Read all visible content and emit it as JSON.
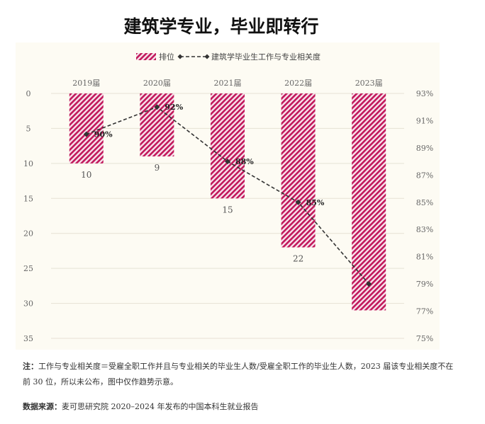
{
  "title": "建筑学专业，毕业即转行",
  "note": {
    "prefix": "注：",
    "text": "工作与专业相关度＝受雇全职工作并且与专业相关的毕业生人数/受雇全职工作的毕业生人数，2023 届该专业相关度不在前 30 位，所以未公布，图中仅作趋势示意。"
  },
  "source": {
    "prefix": "数据来源：",
    "text": "麦可思研究院 2020–2024 年发布的中国本科生就业报告"
  },
  "chart_data": {
    "type": "bar",
    "categories": [
      "2019届",
      "2020届",
      "2021届",
      "2022届",
      "2023届"
    ],
    "series": [
      {
        "name": "排位",
        "type": "bar",
        "axis": "left",
        "values": [
          10,
          9,
          15,
          22,
          31
        ],
        "data_labels": [
          "10",
          "9",
          "15",
          "22",
          ""
        ],
        "color": "#c2185b",
        "pattern": "diagonal-hatch"
      },
      {
        "name": "建筑学毕业生工作与专业相关度",
        "type": "line",
        "axis": "right",
        "values": [
          90,
          92,
          88,
          85,
          79
        ],
        "data_labels": [
          "90%",
          "92%",
          "88%",
          "85%",
          ""
        ],
        "color": "#333333",
        "line_style": "dashed",
        "marker": "diamond"
      }
    ],
    "left_axis": {
      "inverted": true,
      "ylim": [
        0,
        35
      ],
      "ticks": [
        "0",
        "5",
        "10",
        "15",
        "20",
        "25",
        "30",
        "35"
      ]
    },
    "right_axis": {
      "ylim": [
        75,
        93
      ],
      "ticks": [
        "93%",
        "91%",
        "89%",
        "87%",
        "85%",
        "83%",
        "81%",
        "79%",
        "77%",
        "75%"
      ]
    },
    "x_axis_position": "top",
    "legend_position": "top",
    "grid": true
  }
}
